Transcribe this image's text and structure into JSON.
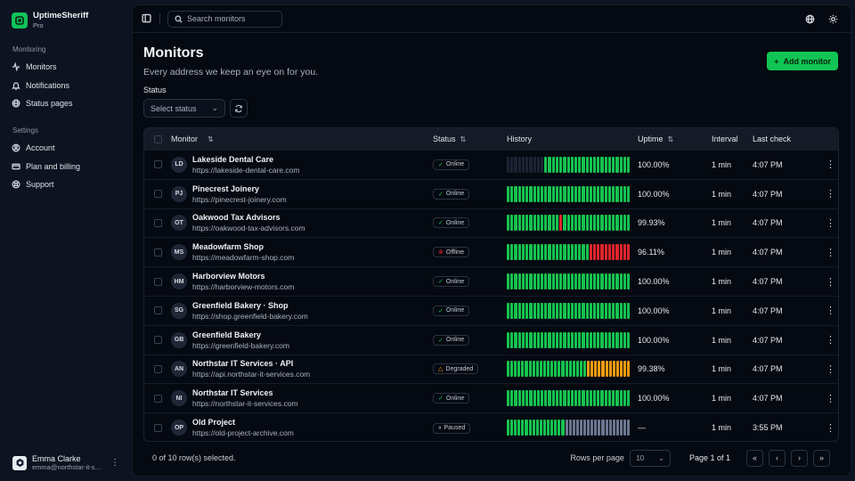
{
  "brand": {
    "name": "UptimeSheriff",
    "plan": "Pro"
  },
  "sidebar": {
    "sections": [
      {
        "title": "Monitoring",
        "items": [
          {
            "label": "Monitors",
            "icon": "activity-icon"
          },
          {
            "label": "Notifications",
            "icon": "bell-icon"
          },
          {
            "label": "Status pages",
            "icon": "globe-icon"
          }
        ]
      },
      {
        "title": "Settings",
        "items": [
          {
            "label": "Account",
            "icon": "user-circle-icon"
          },
          {
            "label": "Plan and billing",
            "icon": "credit-card-icon"
          },
          {
            "label": "Support",
            "icon": "lifebuoy-icon"
          }
        ]
      }
    ]
  },
  "user": {
    "name": "Emma Clarke",
    "email": "emma@northstar-it-services.com"
  },
  "topbar": {
    "search_placeholder": "Search monitors"
  },
  "page": {
    "title": "Monitors",
    "subtitle": "Every address we keep an eye on for you.",
    "add_button": "Add monitor",
    "filter_label": "Status",
    "filter_placeholder": "Select status"
  },
  "table": {
    "headers": {
      "monitor": "Monitor",
      "status": "Status",
      "history": "History",
      "uptime": "Uptime",
      "interval": "Interval",
      "last_check": "Last check"
    },
    "status_colors": {
      "up": "#16c24f",
      "down": "#e0242a",
      "degraded": "#f29a11",
      "paused": "#6b7690",
      "empty": "#1c2433"
    },
    "rows": [
      {
        "initials": "LD",
        "name": "Lakeside Dental Care",
        "url": "https://lakeside-dental-care.com",
        "status": "Online",
        "history": "eeeeeeeeeeuuuuuuuuuuuuuuuuuuuuuuu",
        "uptime": "100.00%",
        "interval": "1 min",
        "last_check": "4:07 PM"
      },
      {
        "initials": "PJ",
        "name": "Pinecrest Joinery",
        "url": "https://pinecrest-joinery.com",
        "status": "Online",
        "history": "uuuuuuuuuuuuuuuuuuuuuuuuuuuuuuuuu",
        "uptime": "100.00%",
        "interval": "1 min",
        "last_check": "4:07 PM"
      },
      {
        "initials": "OT",
        "name": "Oakwood Tax Advisors",
        "url": "https://oakwood-tax-advisors.com",
        "status": "Online",
        "history": "uuuuuuuuuuuuuuduuuuuuuuuuuuuuuuuu",
        "uptime": "99.93%",
        "interval": "1 min",
        "last_check": "4:07 PM"
      },
      {
        "initials": "MS",
        "name": "Meadowfarm Shop",
        "url": "https://meadowfarm-shop.com",
        "status": "Offline",
        "history": "uuuuuuuuuuuuuuuuuuuuuuddddddddddd",
        "uptime": "96.11%",
        "interval": "1 min",
        "last_check": "4:07 PM"
      },
      {
        "initials": "HM",
        "name": "Harborview Motors",
        "url": "https://harborview-motors.com",
        "status": "Online",
        "history": "uuuuuuuuuuuuuuuuuuuuuuuuuuuuuuuuu",
        "uptime": "100.00%",
        "interval": "1 min",
        "last_check": "4:07 PM"
      },
      {
        "initials": "SG",
        "name": "Greenfield Bakery · Shop",
        "url": "https://shop.greenfield-bakery.com",
        "status": "Online",
        "history": "uuuuuuuuuuuuuuuuuuuuuuuuuuuuuuuuu",
        "uptime": "100.00%",
        "interval": "1 min",
        "last_check": "4:07 PM"
      },
      {
        "initials": "GB",
        "name": "Greenfield Bakery",
        "url": "https://greenfield-bakery.com",
        "status": "Online",
        "history": "uuuuuuuuuuuuuuuuuuuuuuuuuuuuuuuuu",
        "uptime": "100.00%",
        "interval": "1 min",
        "last_check": "4:07 PM"
      },
      {
        "initials": "AN",
        "name": "Northstar IT Services · API",
        "url": "https://api.northstar-it-services.com",
        "status": "Degraded",
        "history": "uuuuuuuuuuuuuuuuuuuuuugggggggggggg",
        "uptime": "99.38%",
        "interval": "1 min",
        "last_check": "4:07 PM"
      },
      {
        "initials": "NI",
        "name": "Northstar IT Services",
        "url": "https://northstar-it-services.com",
        "status": "Online",
        "history": "uuuuuuuuuuuuuuuuuuuuuuuuuuuuuuuuu",
        "uptime": "100.00%",
        "interval": "1 min",
        "last_check": "4:07 PM"
      },
      {
        "initials": "OP",
        "name": "Old Project",
        "url": "https://old-project-archive.com",
        "status": "Paused",
        "history": "uuuuuuuuuuuuuuuupppppppppppppppppp",
        "uptime": "—",
        "interval": "1 min",
        "last_check": "3:55 PM"
      }
    ]
  },
  "footer": {
    "selection": "0 of 10 row(s) selected.",
    "rows_per_page_label": "Rows per page",
    "rows_per_page": "10",
    "page_info": "Page 1 of 1"
  }
}
